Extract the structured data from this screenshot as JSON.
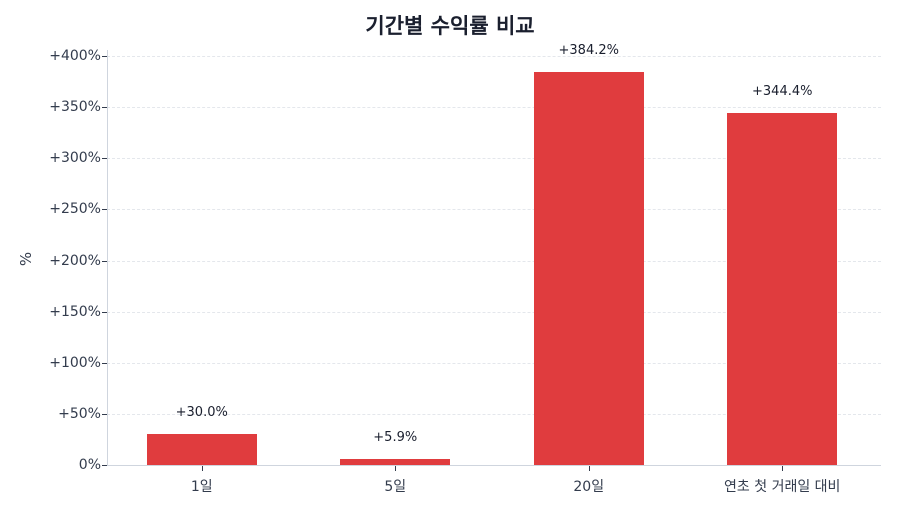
{
  "chart_data": {
    "type": "bar",
    "title": "기간별 수익률 비교",
    "xlabel": "",
    "ylabel": "%",
    "categories": [
      "1일",
      "5일",
      "20일",
      "연초 첫 거래일 대비"
    ],
    "values": [
      30.0,
      5.9,
      384.2,
      344.4
    ],
    "value_labels": [
      "+30.0%",
      "+5.9%",
      "+384.2%",
      "+344.4%"
    ],
    "ylim": [
      0,
      400
    ],
    "yticks": [
      0,
      50,
      100,
      150,
      200,
      250,
      300,
      350,
      400
    ],
    "ytick_labels": [
      "0%",
      "+50%",
      "+100%",
      "+150%",
      "+200%",
      "+250%",
      "+300%",
      "+350%",
      "+400%"
    ],
    "grid": true,
    "legend": null,
    "bar_color": "#e03c3e"
  }
}
